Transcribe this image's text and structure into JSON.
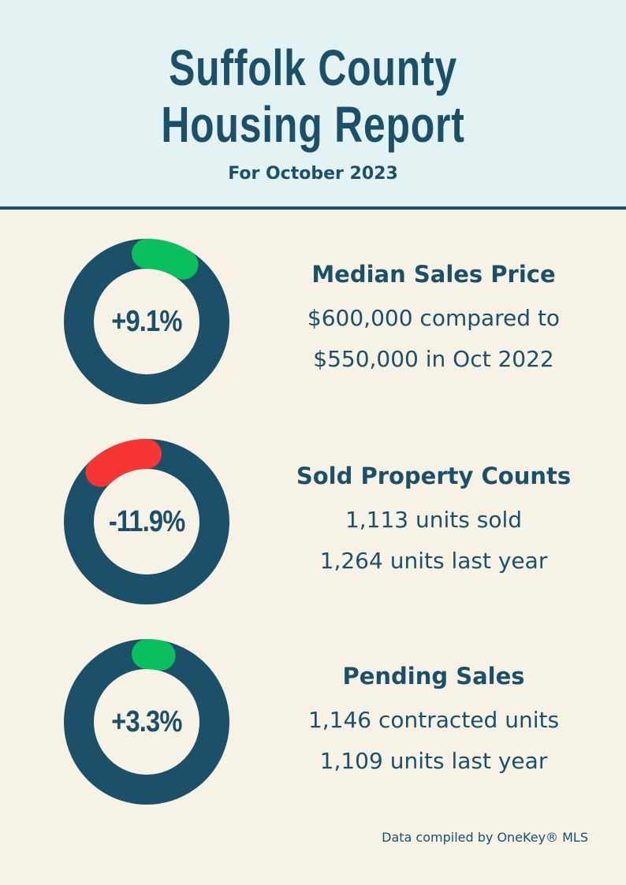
{
  "header": {
    "title_line1": "Suffolk County",
    "title_line2": "Housing Report",
    "subtitle": "For October 2023"
  },
  "colors": {
    "primary": "#1b5068",
    "increase": "#0abf5e",
    "decrease": "#f73535",
    "header_bg": "#e3f3f3",
    "page_bg": "#f6f2e6"
  },
  "stats": [
    {
      "change_label": "+9.1%",
      "change_value": 9.1,
      "direction": "increase",
      "title": "Median Sales Price",
      "line1": "$600,000 compared to",
      "line2": "$550,000 in Oct 2022"
    },
    {
      "change_label": "-11.9%",
      "change_value": -11.9,
      "direction": "decrease",
      "title": "Sold Property Counts",
      "line1": "1,113 units sold",
      "line2": "1,264 units last year"
    },
    {
      "change_label": "+3.3%",
      "change_value": 3.3,
      "direction": "increase",
      "title": "Pending Sales",
      "line1": "1,146 contracted units",
      "line2": "1,109 units last year"
    }
  ],
  "footer": {
    "credit": "Data compiled by OneKey® MLS"
  }
}
